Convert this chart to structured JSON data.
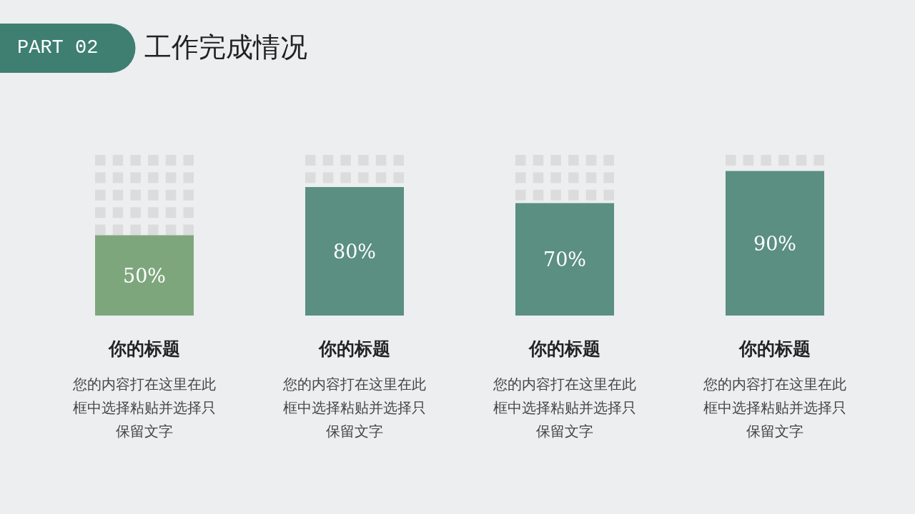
{
  "chart_data": {
    "type": "bar",
    "title": "工作完成情况",
    "subtitle": "PART 02",
    "categories": [
      "你的标题",
      "你的标题",
      "你的标题",
      "你的标题"
    ],
    "values": [
      50,
      80,
      70,
      90
    ],
    "colors": [
      "#7ea67c",
      "#5a8f82",
      "#5a8f82",
      "#5a8f82"
    ],
    "value_labels": [
      "50%",
      "80%",
      "70%",
      "90%"
    ],
    "ylim": [
      0,
      100
    ],
    "annotations": [
      "您的内容打在这里在此框中选择粘贴并选择只保留文字",
      "您的内容打在这里在此框中选择粘贴并选择只保留文字",
      "您的内容打在这里在此框中选择粘贴并选择只保留文字",
      "您的内容打在这里在此框中选择粘贴并选择只保留文字"
    ]
  }
}
